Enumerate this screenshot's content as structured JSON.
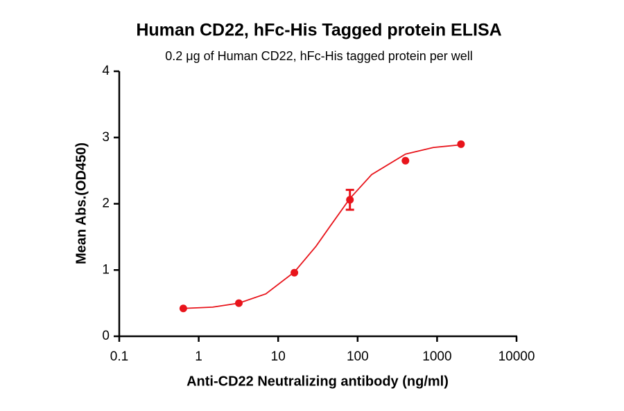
{
  "chart_data": {
    "type": "scatter",
    "title": "Human CD22,  hFc-His Tagged protein ELISA",
    "subtitle": "0.2 μg of Human CD22, hFc-His tagged protein per well",
    "x_label": "Anti-CD22 Neutralizing antibody (ng/ml)",
    "y_label": "Mean Abs.(OD450)",
    "x_scale": "log",
    "xlim": [
      0.1,
      10000
    ],
    "xticks": [
      0.1,
      1,
      10,
      100,
      1000,
      10000
    ],
    "ylim": [
      0,
      4
    ],
    "yticks": [
      0,
      1,
      2,
      3,
      4
    ],
    "series": [
      {
        "color": "#e8141b",
        "x": [
          0.64,
          3.2,
          16,
          80,
          400,
          2000
        ],
        "values": [
          0.42,
          0.5,
          0.96,
          2.06,
          2.65,
          2.9
        ],
        "errors": [
          0,
          0,
          0,
          0.15,
          0,
          0
        ]
      }
    ],
    "curve": {
      "color": "#e8141b",
      "x": [
        0.64,
        1.5,
        3.2,
        7,
        16,
        30,
        45,
        80,
        150,
        400,
        900,
        2000
      ],
      "values": [
        0.42,
        0.44,
        0.5,
        0.64,
        0.97,
        1.36,
        1.66,
        2.08,
        2.44,
        2.75,
        2.85,
        2.89
      ]
    }
  }
}
